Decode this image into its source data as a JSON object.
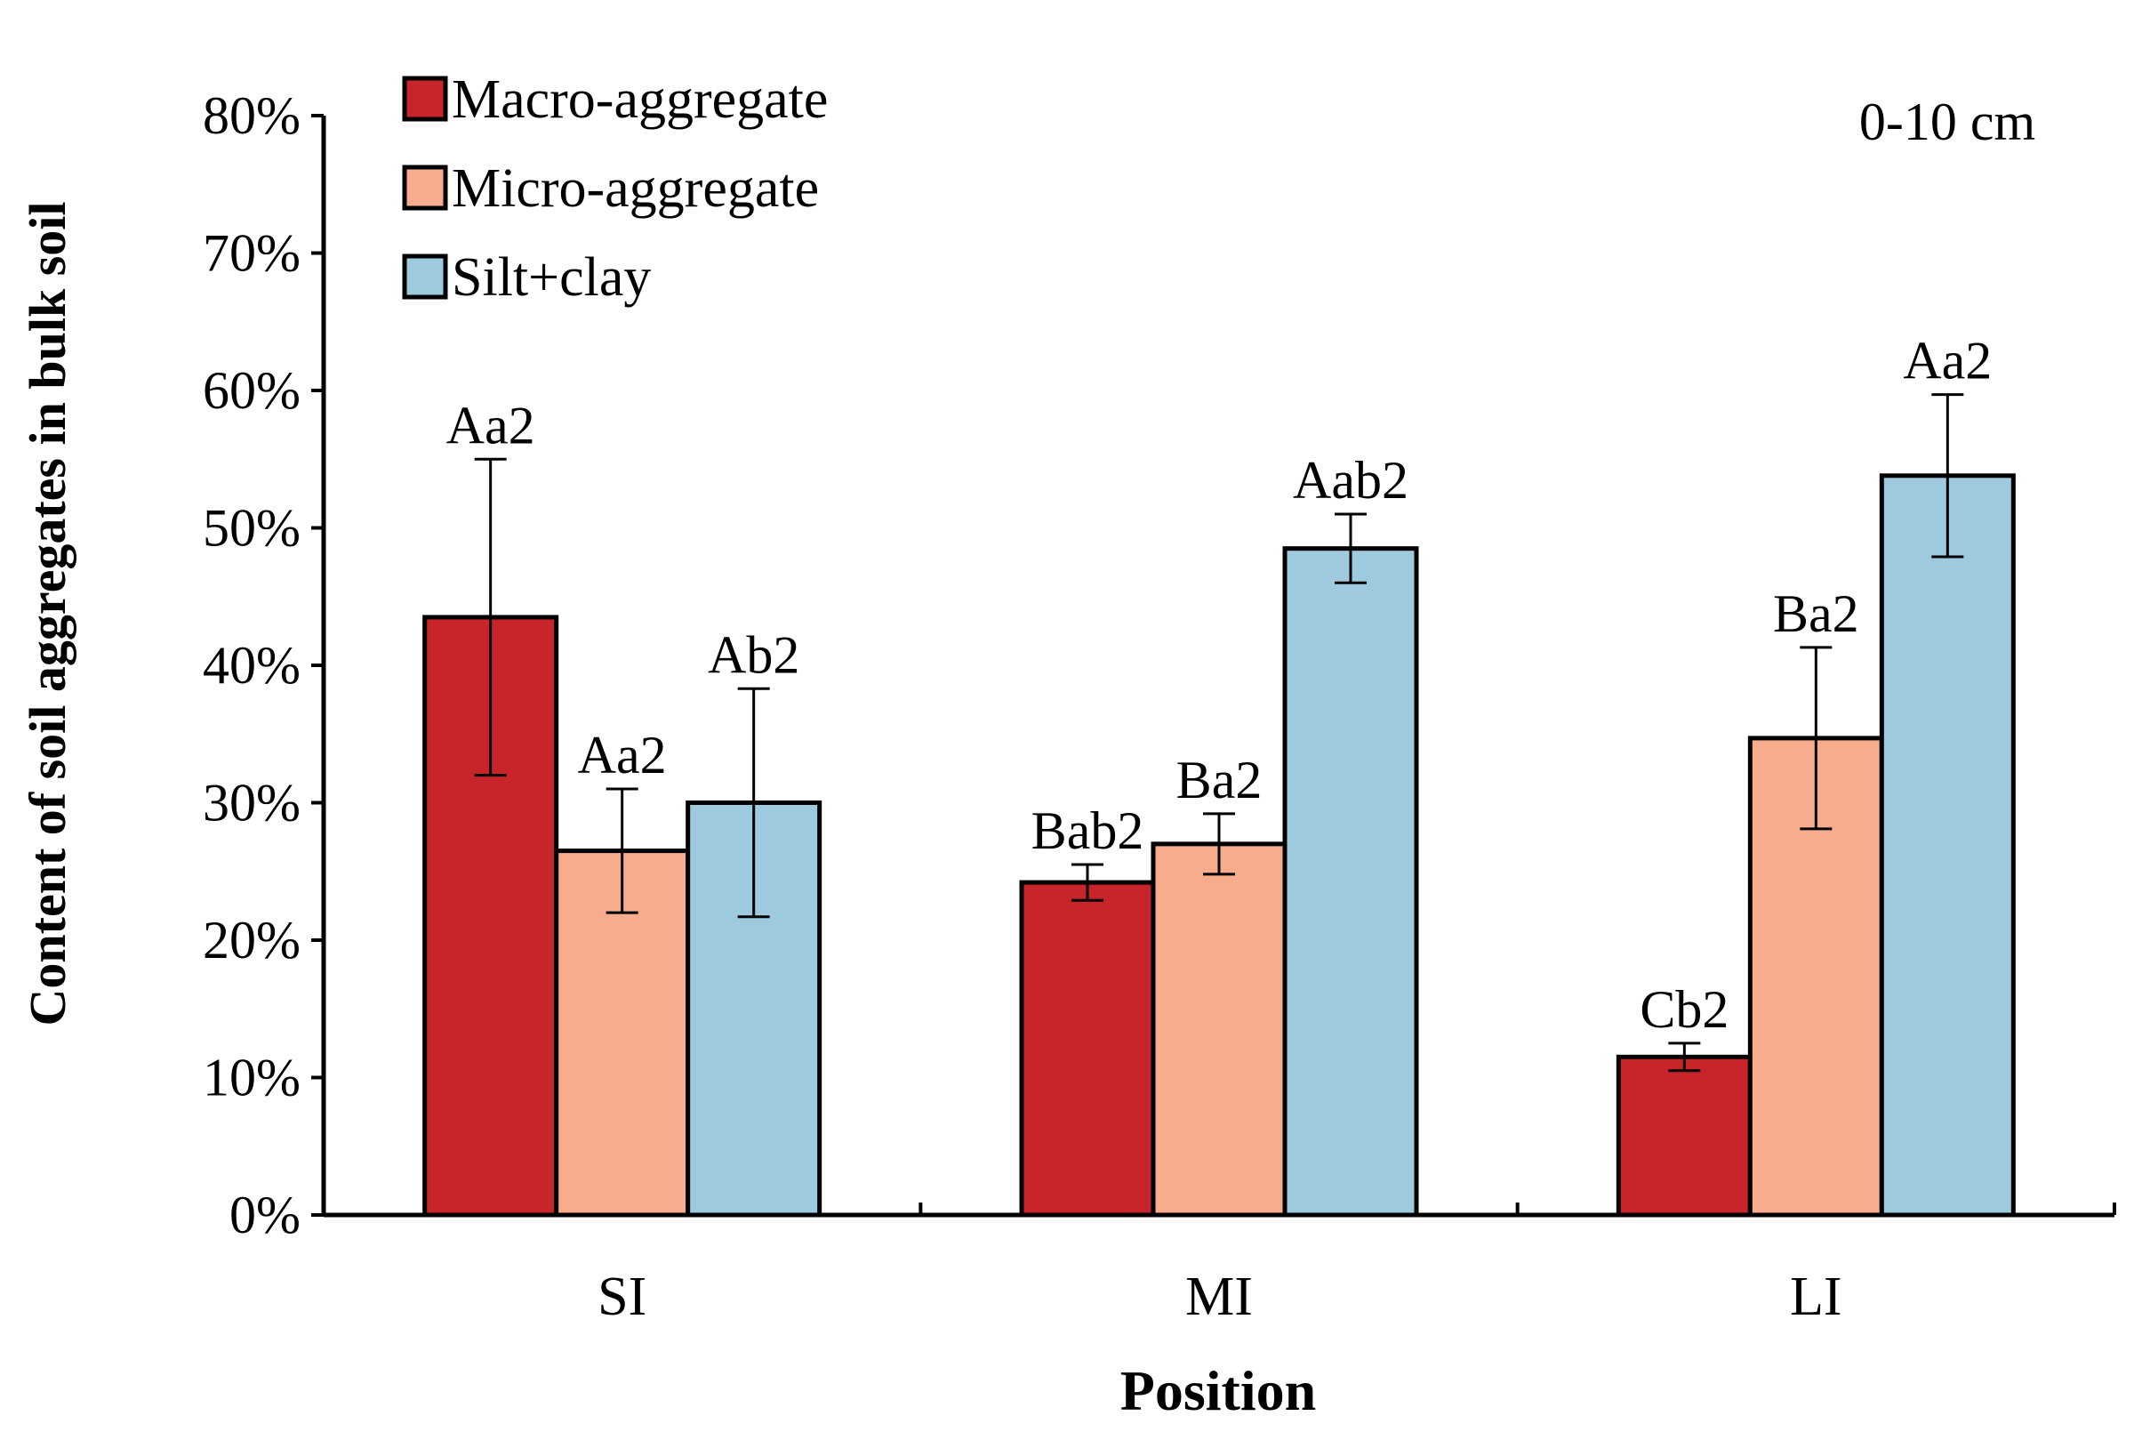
{
  "chart_data": {
    "type": "bar",
    "title": "",
    "annotation": "0-10 cm",
    "xlabel": "Position",
    "ylabel": "Content of soil aggregates in bulk soil",
    "categories": [
      "SI",
      "MI",
      "LI"
    ],
    "ylim": [
      0,
      80
    ],
    "yticks": [
      0,
      10,
      20,
      30,
      40,
      50,
      60,
      70,
      80
    ],
    "ytick_labels": [
      "0%",
      "10%",
      "20%",
      "30%",
      "40%",
      "50%",
      "60%",
      "70%",
      "80%"
    ],
    "legend_position": "top-left",
    "series": [
      {
        "name": "Macro-aggregate",
        "color": "#c8252a",
        "values": [
          43.5,
          24.2,
          11.5
        ],
        "errors": [
          11.5,
          1.3,
          1.0
        ],
        "labels": [
          "Aa2",
          "Bab2",
          "Cb2"
        ]
      },
      {
        "name": "Micro-aggregate",
        "color": "#f7ad8d",
        "values": [
          26.5,
          27.0,
          34.7
        ],
        "errors": [
          4.5,
          2.2,
          6.6
        ],
        "labels": [
          "Aa2",
          "Ba2",
          "Ba2"
        ]
      },
      {
        "name": "Silt+clay",
        "color": "#9dcadf",
        "values": [
          30.0,
          48.5,
          53.8
        ],
        "errors": [
          8.3,
          2.5,
          5.9
        ],
        "labels": [
          "Ab2",
          "Aab2",
          "Aa2"
        ]
      }
    ]
  }
}
